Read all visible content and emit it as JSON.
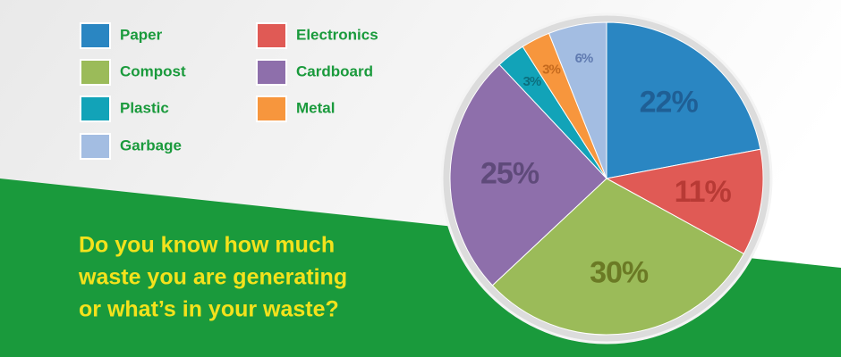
{
  "chart_data": {
    "type": "pie",
    "categories": [
      "Paper",
      "Electronics",
      "Compost",
      "Cardboard",
      "Plastic",
      "Metal",
      "Garbage"
    ],
    "values": [
      22,
      11,
      30,
      25,
      3,
      3,
      6
    ],
    "value_labels": [
      "22%",
      "11%",
      "30%",
      "25%",
      "3%",
      "3%",
      "6%"
    ],
    "colors": [
      "#2a86c2",
      "#e05a55",
      "#9bbb59",
      "#8e6fab",
      "#12a3b8",
      "#f7963d",
      "#a3bde2"
    ],
    "label_colors": [
      "#1f5f95",
      "#b83a35",
      "#6b7a25",
      "#5f4a7a",
      "#0c6f7e",
      "#c56a1e",
      "#5f7ab0"
    ],
    "annotation": [
      "Do you know how much",
      "waste you are generating",
      "or what’s in your waste?"
    ]
  }
}
